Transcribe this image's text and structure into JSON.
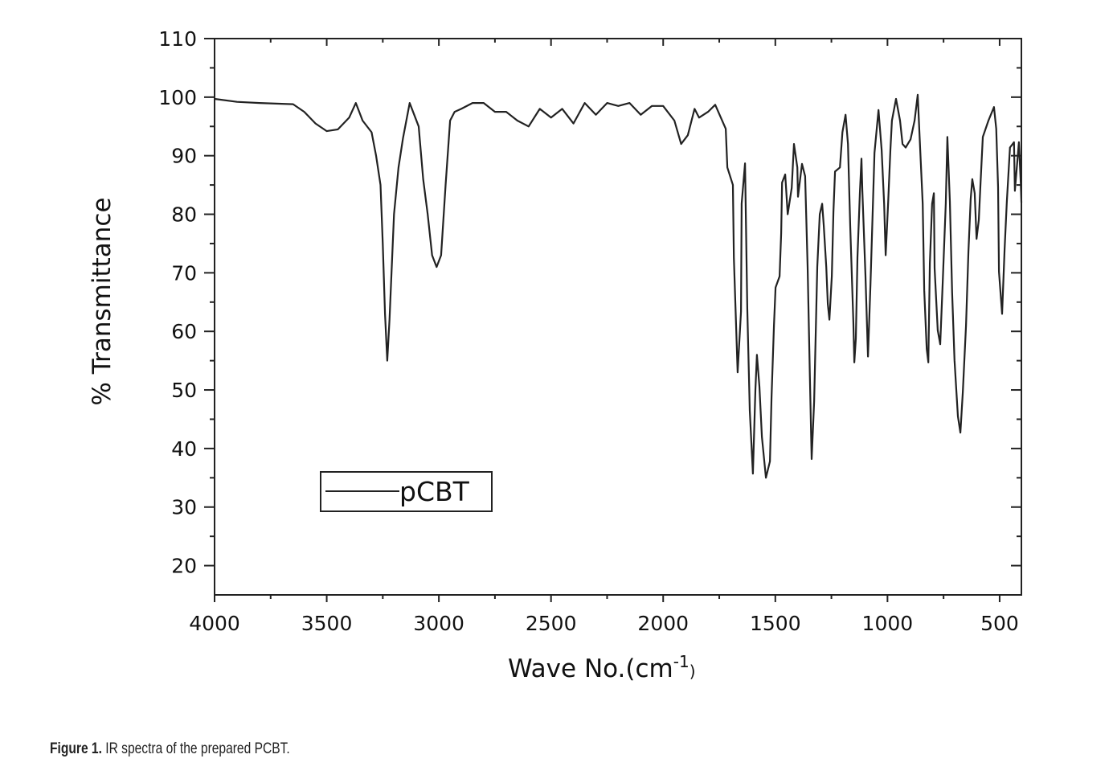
{
  "chart_data": {
    "type": "line",
    "xlabel": "Wave No.(cm",
    "xlabel_sup": "-1",
    "xlabel_close": ")",
    "ylabel": "% Transmittance",
    "xlim": [
      4000,
      403
    ],
    "ylim": [
      15,
      110
    ],
    "x_reversed": true,
    "x_ticks": [
      4000,
      3500,
      3000,
      2500,
      2000,
      1500,
      1000,
      500
    ],
    "y_ticks": [
      20,
      30,
      40,
      50,
      60,
      70,
      80,
      90,
      100,
      110
    ],
    "grid": false,
    "legend_placement": "lower-left",
    "line_color": "#222222",
    "series": [
      {
        "name": "pCBT",
        "x": [
          4000,
          3900,
          3800,
          3650,
          3600,
          3550,
          3500,
          3450,
          3400,
          3370,
          3340,
          3300,
          3280,
          3260,
          3250,
          3240,
          3230,
          3220,
          3200,
          3180,
          3160,
          3130,
          3110,
          3090,
          3070,
          3050,
          3030,
          3010,
          2990,
          2970,
          2950,
          2930,
          2900,
          2850,
          2800,
          2750,
          2700,
          2650,
          2600,
          2550,
          2500,
          2450,
          2400,
          2350,
          2300,
          2250,
          2200,
          2150,
          2100,
          2050,
          2000,
          1950,
          1920,
          1890,
          1860,
          1840,
          1800,
          1768,
          1721,
          1714,
          1689,
          1685,
          1668,
          1653,
          1650,
          1635,
          1625,
          1614,
          1600,
          1589,
          1582,
          1571,
          1560,
          1542,
          1524,
          1517,
          1506,
          1499,
          1481,
          1474,
          1470,
          1456,
          1445,
          1427,
          1417,
          1402,
          1399,
          1381,
          1367,
          1356,
          1346,
          1338,
          1327,
          1313,
          1302,
          1291,
          1284,
          1273,
          1266,
          1259,
          1248,
          1241,
          1234,
          1212,
          1201,
          1187,
          1176,
          1166,
          1152,
          1148,
          1141,
          1134,
          1123,
          1116,
          1112,
          1098,
          1087,
          1076,
          1058,
          1040,
          1026,
          1015,
          1008,
          997,
          987,
          980,
          962,
          944,
          933,
          919,
          897,
          879,
          865,
          854,
          843,
          836,
          825,
          818,
          811,
          801,
          793,
          790,
          776,
          765,
          754,
          740,
          733,
          722,
          712,
          701,
          686,
          675,
          664,
          650,
          639,
          629,
          622,
          611,
          603,
          593,
          585,
          575,
          550,
          525,
          515,
          507,
          503,
          489,
          478,
          468,
          454,
          436,
          432,
          414,
          406,
          403
        ],
        "y": [
          99.7,
          99.2,
          99,
          98.8,
          97.5,
          95.5,
          94.2,
          94.5,
          96.5,
          99,
          96,
          94,
          90,
          85,
          75,
          63,
          55,
          62,
          80,
          88,
          93,
          99,
          97,
          95,
          86,
          80,
          73,
          71,
          73,
          85,
          96,
          97.5,
          98,
          99,
          99,
          97.5,
          97.5,
          96,
          95,
          98,
          96.5,
          98,
          95.5,
          99,
          97,
          99,
          98.5,
          99,
          97,
          98.5,
          98.5,
          96,
          92,
          93.5,
          98,
          96.5,
          97.5,
          98.7,
          94.6,
          88,
          85,
          72.6,
          53,
          63.4,
          81.8,
          88.7,
          64,
          46.5,
          35.7,
          50,
          56,
          50.6,
          42,
          35,
          37.8,
          48.8,
          61,
          67.5,
          69.4,
          76.8,
          85.4,
          86.8,
          80,
          84.5,
          92,
          88,
          83,
          88.6,
          86.5,
          71,
          52.3,
          38.2,
          48,
          71,
          80,
          81.8,
          78,
          71,
          64.7,
          62,
          69.4,
          80.4,
          87.3,
          88,
          94,
          97,
          92,
          78,
          61.6,
          54.7,
          58.8,
          72.6,
          83.6,
          89.5,
          84,
          69.4,
          55.7,
          68,
          90.5,
          97.8,
          91,
          81.8,
          73,
          82,
          91,
          96,
          99.7,
          96,
          92,
          91.4,
          92.8,
          96,
          100.4,
          91,
          81.8,
          67,
          57,
          54.7,
          71.6,
          81.8,
          83.6,
          70.8,
          60.2,
          57.8,
          68,
          81.8,
          93.2,
          82.2,
          66.7,
          55,
          45.5,
          42.7,
          49.6,
          61,
          73.6,
          82.6,
          86,
          83.6,
          75.8,
          79,
          85.4,
          93.2,
          96,
          98.3,
          94.6,
          84.6,
          70.2,
          63,
          74,
          82.2,
          91.4,
          92.3,
          84,
          92.3,
          85.4,
          82
        ]
      }
    ]
  },
  "caption": {
    "label": "Figure 1.",
    "text": " IR spectra of the prepared PCBT."
  }
}
